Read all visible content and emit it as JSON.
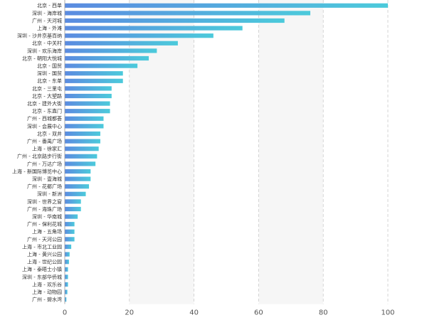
{
  "chart_data": {
    "type": "bar",
    "orientation": "horizontal",
    "title": "",
    "xlabel": "",
    "ylabel": "",
    "xlim": [
      0,
      100
    ],
    "x_ticks": [
      0,
      20,
      40,
      60,
      80,
      100
    ],
    "grid": "vertical-dashed",
    "band_shading": "alternating-columns",
    "colors": {
      "gradient_start": "#5b8be0",
      "gradient_end": "#4ccadb",
      "grid": "#cccccc",
      "band": "#f6f6f6"
    },
    "categories": [
      "北京 - 西单",
      "深圳 - 海岸城",
      "广州 - 天河城",
      "上海 - 外滩",
      "深圳 - 沙井京基百纳",
      "北京 - 中关村",
      "深圳 - 欢乐海岸",
      "北京 - 朝阳大悦城",
      "北京 - 国贸",
      "深圳 - 国贸",
      "北京 - 东单",
      "北京 - 三里屯",
      "北京 - 大望路",
      "北京 - 建外大街",
      "北京 - 东直门",
      "广州 - 西城都荟",
      "深圳 - 会展中心",
      "北京 - 双井",
      "广州 - 番禺广场",
      "上海 - 徐家汇",
      "广州 - 北京路步行街",
      "广州 - 万达广场",
      "上海 - 新国际博览中心",
      "深圳 - 壹海城",
      "广州 - 花都广场",
      "深圳 - 新洲",
      "深圳 - 世界之窗",
      "广州 - 海珠广场",
      "深圳 - 华南城",
      "广州 - 保利花城",
      "上海 - 五角场",
      "广州 - 天河公园",
      "上海 - 市北工业园",
      "上海 - 黄兴公园",
      "上海 - 世纪公园",
      "上海 - 泰晤士小镇",
      "深圳 - 东部华侨城",
      "上海 - 欢乐谷",
      "上海 - 动物园",
      "广州 - 碧水湾"
    ],
    "values": [
      100,
      76,
      68,
      55,
      46,
      35,
      28.5,
      26,
      22.5,
      18,
      18,
      14.5,
      14.5,
      14,
      14,
      12,
      12,
      11,
      11,
      10.5,
      10,
      9.5,
      8,
      8,
      7.5,
      6.5,
      5,
      5,
      4,
      3,
      3,
      3,
      2,
      1.5,
      1.3,
      1,
      1,
      1,
      0.8,
      0.5
    ]
  }
}
